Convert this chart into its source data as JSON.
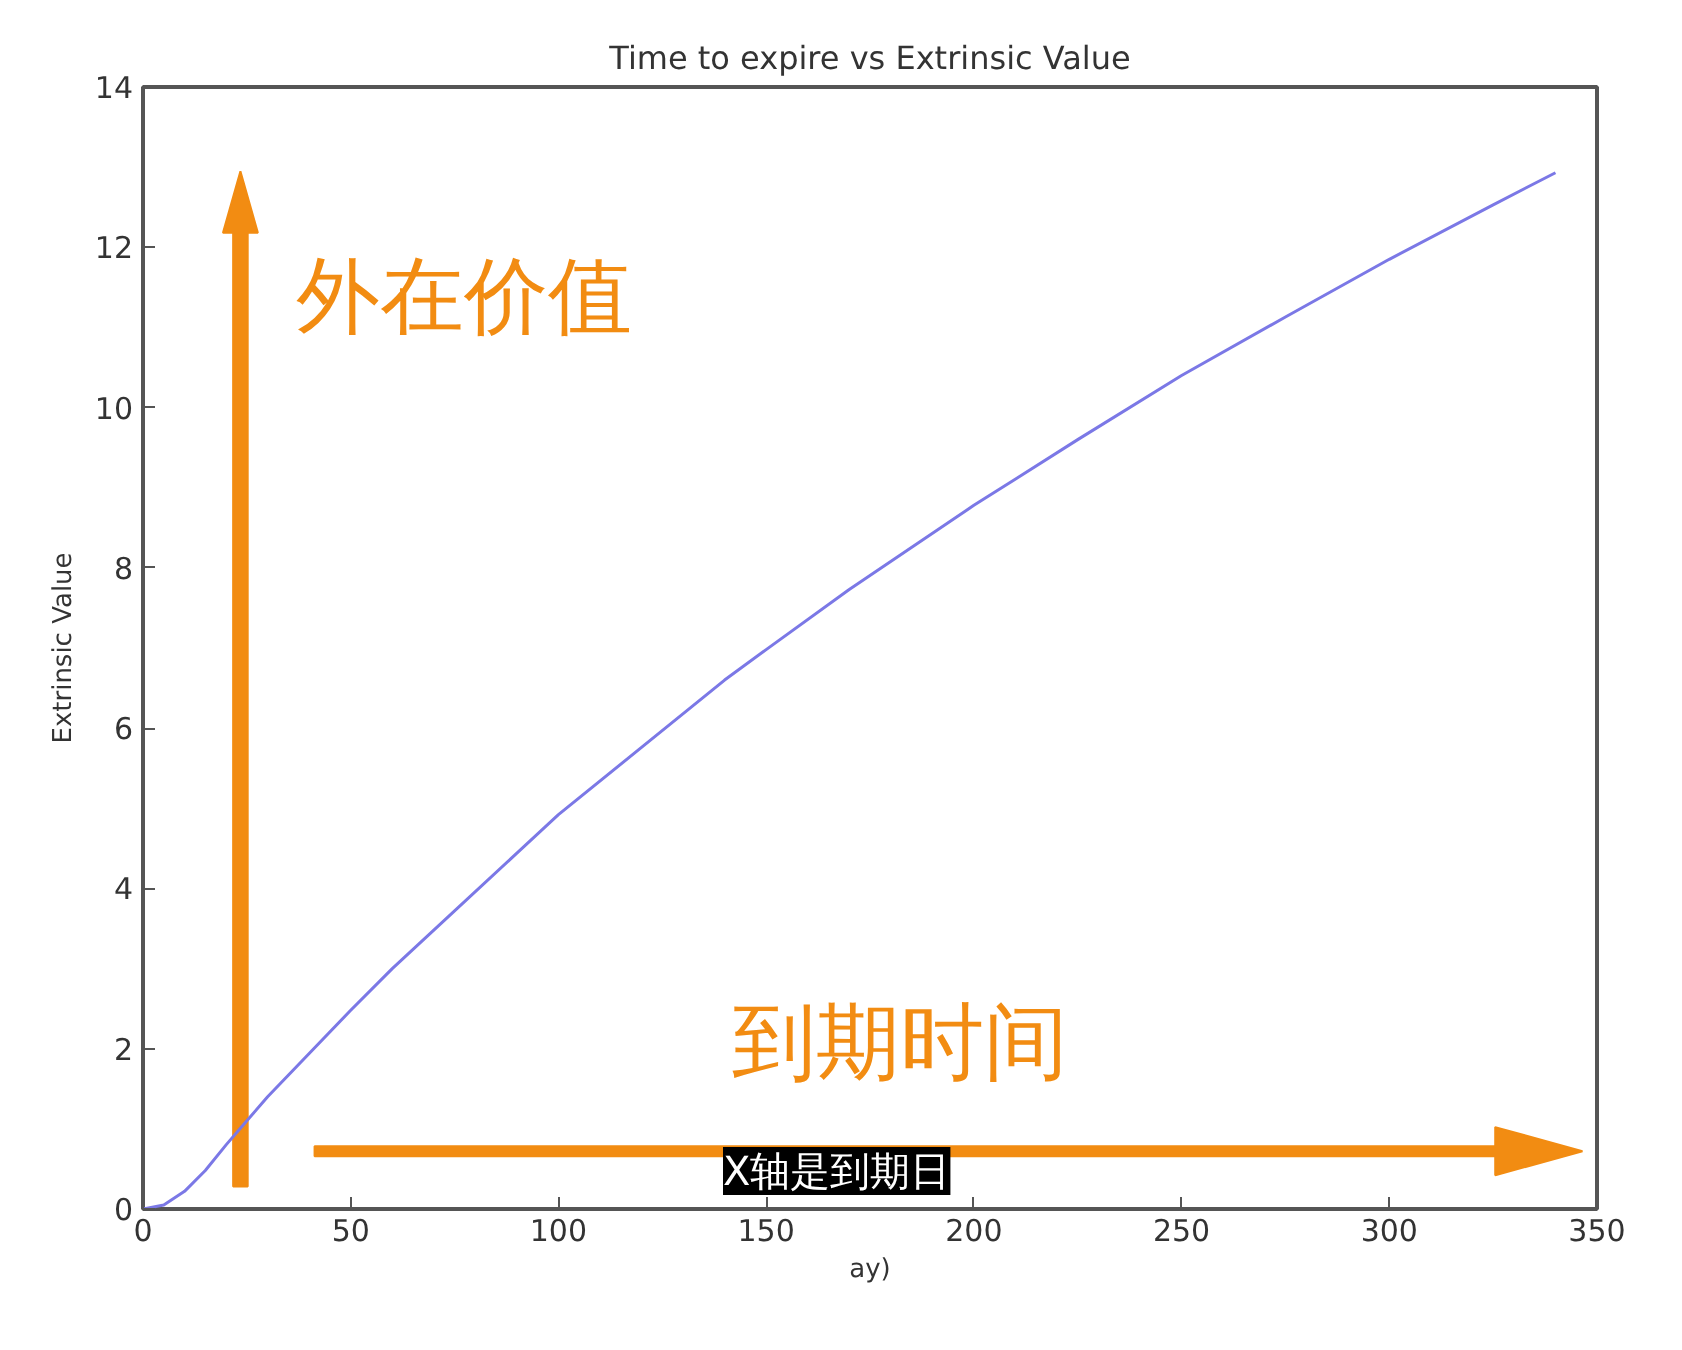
{
  "chart_data": {
    "type": "line",
    "title": "Time to expire vs Extrinsic Value",
    "xlabel": "ay)",
    "ylabel": "Extrinsic Value",
    "annotations": [
      "外在价值",
      "到期时间",
      "X轴是到期日"
    ],
    "x": [
      0,
      5,
      10,
      15,
      20,
      25,
      30,
      40,
      50,
      60,
      75,
      90,
      100,
      120,
      140,
      150,
      170,
      200,
      225,
      250,
      275,
      300,
      325,
      340
    ],
    "series": [
      {
        "color": "#7b78e6",
        "values": [
          0,
          0.05,
          0.22,
          0.48,
          0.8,
          1.1,
          1.4,
          1.94,
          2.48,
          3.0,
          3.72,
          4.44,
          4.92,
          5.76,
          6.6,
          6.98,
          7.73,
          8.78,
          9.6,
          10.4,
          11.13,
          11.85,
          12.53,
          12.93
        ]
      }
    ],
    "xlim": [
      0,
      350
    ],
    "ylim": [
      0,
      14
    ],
    "xticks": [
      0,
      50,
      100,
      150,
      200,
      250,
      300,
      350
    ],
    "yticks": [
      0,
      2,
      4,
      6,
      8,
      10,
      12,
      14
    ],
    "grid": false,
    "marker": "none",
    "line_style": "solid"
  }
}
